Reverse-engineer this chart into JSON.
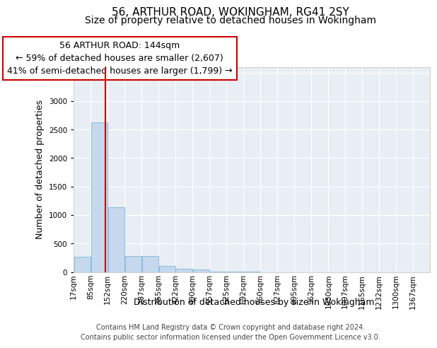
{
  "title1": "56, ARTHUR ROAD, WOKINGHAM, RG41 2SY",
  "title2": "Size of property relative to detached houses in Wokingham",
  "xlabel": "Distribution of detached houses by size in Wokingham",
  "ylabel": "Number of detached properties",
  "bin_labels": [
    "17sqm",
    "85sqm",
    "152sqm",
    "220sqm",
    "287sqm",
    "355sqm",
    "422sqm",
    "490sqm",
    "557sqm",
    "625sqm",
    "692sqm",
    "760sqm",
    "827sqm",
    "895sqm",
    "962sqm",
    "1030sqm",
    "1097sqm",
    "1165sqm",
    "1232sqm",
    "1300sqm",
    "1367sqm"
  ],
  "bin_edges": [
    17,
    85,
    152,
    220,
    287,
    355,
    422,
    490,
    557,
    625,
    692,
    760,
    827,
    895,
    962,
    1030,
    1097,
    1165,
    1232,
    1300,
    1367,
    1435
  ],
  "bar_heights": [
    270,
    2630,
    1140,
    285,
    285,
    100,
    60,
    40,
    5,
    2,
    1,
    0,
    0,
    0,
    0,
    0,
    0,
    0,
    0,
    0,
    0
  ],
  "bar_color": "#c5d8ed",
  "bar_edgecolor": "#6aaed6",
  "property_size": 144,
  "red_line_color": "#cc0000",
  "annotation_line1": "56 ARTHUR ROAD: 144sqm",
  "annotation_line2": "← 59% of detached houses are smaller (2,607)",
  "annotation_line3": "41% of semi-detached houses are larger (1,799) →",
  "annotation_box_color": "#ffffff",
  "annotation_box_edgecolor": "#cc0000",
  "ylim": [
    0,
    3600
  ],
  "yticks": [
    0,
    500,
    1000,
    1500,
    2000,
    2500,
    3000,
    3500
  ],
  "background_color": "#e8eef4",
  "footer_line1": "Contains HM Land Registry data © Crown copyright and database right 2024.",
  "footer_line2": "Contains public sector information licensed under the Open Government Licence v3.0.",
  "title1_fontsize": 11,
  "title2_fontsize": 10,
  "xlabel_fontsize": 9,
  "ylabel_fontsize": 9,
  "tick_fontsize": 7.5,
  "annotation_fontsize": 9,
  "footer_fontsize": 7
}
